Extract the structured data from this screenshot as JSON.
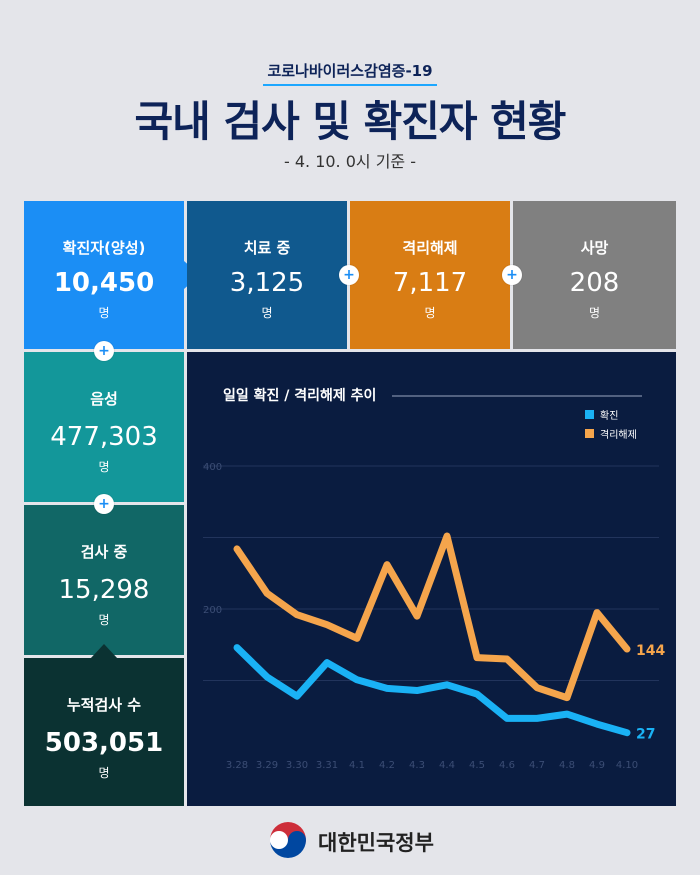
{
  "header": {
    "subtitle": "코로나바이러스감염증-19",
    "title": "국내 검사 및 확진자 현황",
    "date": "- 4. 10. 0시 기준 -"
  },
  "stats": {
    "confirmed": {
      "label": "확진자(양성)",
      "value": "10,450",
      "unit": "명"
    },
    "in_treatment": {
      "label": "치료 중",
      "value": "3,125",
      "unit": "명"
    },
    "released": {
      "label": "격리해제",
      "value": "7,117",
      "unit": "명"
    },
    "deaths": {
      "label": "사망",
      "value": "208",
      "unit": "명"
    },
    "negative": {
      "label": "음성",
      "value": "477,303",
      "unit": "명"
    },
    "testing": {
      "label": "검사 중",
      "value": "15,298",
      "unit": "명"
    },
    "total_tests": {
      "label": "누적검사 수",
      "value": "503,051",
      "unit": "명"
    }
  },
  "plus_symbol": "+",
  "chart_data": {
    "type": "line",
    "title": "일일 확진 / 격리해제 추이",
    "categories": [
      "3.28",
      "3.29",
      "3.30",
      "3.31",
      "4.1",
      "4.2",
      "4.3",
      "4.4",
      "4.5",
      "4.6",
      "4.7",
      "4.8",
      "4.9",
      "4.10"
    ],
    "yticks": [
      400,
      200
    ],
    "ylim": [
      0,
      400
    ],
    "legend_position": "top-right",
    "series": [
      {
        "name": "확진",
        "color": "#1ab2f5",
        "values": [
          146,
          105,
          78,
          125,
          101,
          89,
          86,
          94,
          81,
          47,
          47,
          53,
          39,
          27
        ],
        "end_label": "27"
      },
      {
        "name": "격리해제",
        "color": "#f5a54c",
        "values": [
          284,
          222,
          192,
          178,
          159,
          262,
          190,
          302,
          132,
          130,
          90,
          76,
          195,
          144
        ],
        "end_label": "144"
      }
    ],
    "colors": {
      "panel_bg": "#0a1c40"
    }
  },
  "footer": {
    "government": "대한민국정부"
  }
}
